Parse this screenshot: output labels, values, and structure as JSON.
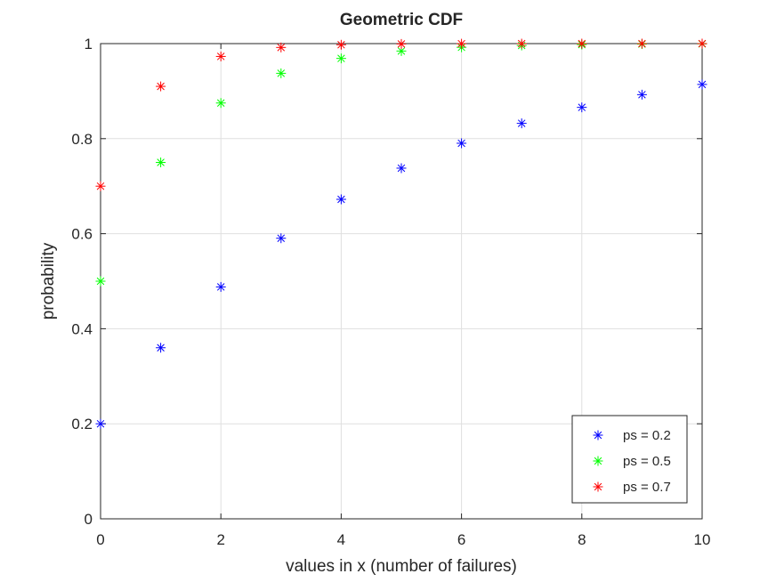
{
  "chart_data": {
    "type": "scatter",
    "title": "Geometric CDF",
    "xlabel": "values in x (number of failures)",
    "ylabel": "probability",
    "xlim": [
      0,
      10
    ],
    "ylim": [
      0,
      1
    ],
    "xticks": [
      "0",
      "2",
      "4",
      "6",
      "8",
      "10"
    ],
    "yticks": [
      "0",
      "0.2",
      "0.4",
      "0.6",
      "0.8",
      "1"
    ],
    "grid": true,
    "legend_location": "bottom-right",
    "marker": "asterisk",
    "x": [
      0,
      1,
      2,
      3,
      4,
      5,
      6,
      7,
      8,
      9,
      10
    ],
    "series": [
      {
        "name": "ps = 0.2",
        "color": "#0000ff",
        "values": [
          0.2,
          0.36,
          0.488,
          0.5904,
          0.6723,
          0.7379,
          0.7903,
          0.8322,
          0.8658,
          0.8926,
          0.9141
        ]
      },
      {
        "name": "ps = 0.5",
        "color": "#00ff00",
        "values": [
          0.5,
          0.75,
          0.875,
          0.9375,
          0.9688,
          0.9844,
          0.9922,
          0.9961,
          0.998,
          0.999,
          0.9995
        ]
      },
      {
        "name": "ps = 0.7",
        "color": "#ff0000",
        "values": [
          0.7,
          0.91,
          0.973,
          0.9919,
          0.9976,
          0.9993,
          0.9998,
          0.9999,
          1.0,
          1.0,
          1.0
        ]
      }
    ]
  }
}
